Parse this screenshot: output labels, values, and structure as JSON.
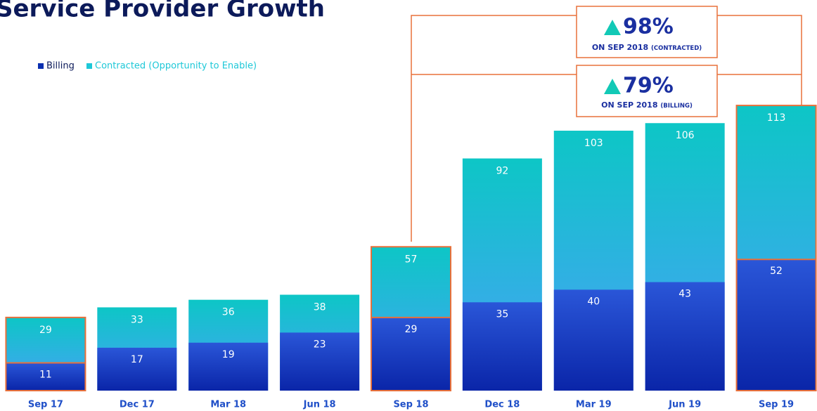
{
  "chart_data": {
    "type": "bar",
    "title": "Service Provider Growth",
    "categories": [
      "Sep 17",
      "Dec 17",
      "Mar 18",
      "Jun 18",
      "Sep 18",
      "Dec 18",
      "Mar 19",
      "Jun 19",
      "Sep 19"
    ],
    "series": [
      {
        "name": "Billing",
        "color": "#0a2fb0",
        "values": [
          11,
          17,
          19,
          23,
          29,
          35,
          40,
          43,
          52
        ]
      },
      {
        "name": "Contracted (Opportunity to Enable)",
        "color": "#1ec8d8",
        "values": [
          29,
          33,
          36,
          38,
          57,
          92,
          103,
          106,
          113
        ]
      }
    ],
    "ylim": [
      0,
      125
    ],
    "legend": "top-left",
    "annotations": [
      {
        "value": "98%",
        "text": "ON SEP 2018",
        "note": "(CONTRACTED)"
      },
      {
        "value": "79%",
        "text": "ON SEP 2018",
        "note": "(BILLING)"
      }
    ]
  }
}
